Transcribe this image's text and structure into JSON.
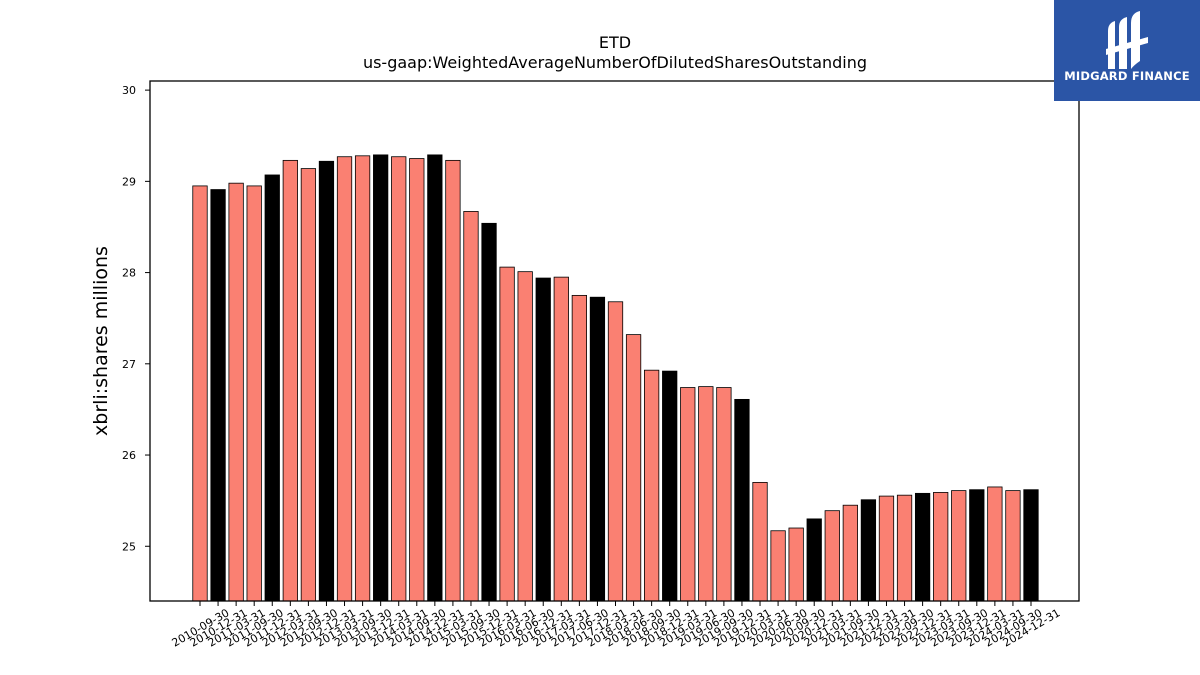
{
  "chart_data": {
    "type": "bar",
    "title": "ETD",
    "subtitle": "us-gaap:WeightedAverageNumberOfDilutedSharesOutstanding",
    "xlabel": "",
    "ylabel": "xbrli:shares millions",
    "ylim": [
      24.4,
      30.1
    ],
    "yticks": [
      25,
      26,
      27,
      28,
      29,
      30
    ],
    "grid": false,
    "colors": {
      "salmon": "#fa8072",
      "black": "#000000"
    },
    "categories": [
      "2010-09-30",
      "2010-12-31",
      "2011-03-31",
      "2011-09-30",
      "2011-12-31",
      "2012-03-31",
      "2012-09-30",
      "2012-12-31",
      "2013-03-31",
      "2013-09-30",
      "2013-12-31",
      "2014-03-31",
      "2014-09-30",
      "2014-12-31",
      "2015-03-31",
      "2015-09-30",
      "2015-12-31",
      "2016-03-31",
      "2016-06-30",
      "2016-12-31",
      "2017-03-31",
      "2017-06-30",
      "2017-12-31",
      "2018-03-31",
      "2018-06-30",
      "2018-09-30",
      "2018-12-31",
      "2019-03-31",
      "2019-06-30",
      "2019-09-30",
      "2019-12-31",
      "2020-03-31",
      "2020-06-30",
      "2020-09-30",
      "2020-12-31",
      "2021-03-31",
      "2021-09-30",
      "2021-12-31",
      "2022-03-31",
      "2022-09-30",
      "2022-12-31",
      "2023-03-31",
      "2023-09-30",
      "2023-12-31",
      "2024-03-31",
      "2024-09-30",
      "2024-12-31"
    ],
    "values": [
      28.95,
      28.91,
      28.98,
      28.95,
      29.07,
      29.23,
      29.14,
      29.22,
      29.27,
      29.28,
      29.29,
      29.27,
      29.25,
      29.29,
      29.23,
      28.67,
      28.54,
      28.06,
      28.01,
      27.94,
      27.95,
      27.75,
      27.73,
      27.68,
      27.32,
      26.93,
      26.92,
      26.74,
      26.75,
      26.74,
      26.61,
      25.7,
      25.17,
      25.2,
      25.3,
      25.39,
      25.45,
      25.51,
      25.55,
      25.56,
      25.58,
      25.59,
      25.61,
      25.62,
      25.65,
      25.61,
      25.62
    ],
    "bar_colors": [
      "salmon",
      "black",
      "salmon",
      "salmon",
      "black",
      "salmon",
      "salmon",
      "black",
      "salmon",
      "salmon",
      "black",
      "salmon",
      "salmon",
      "black",
      "salmon",
      "salmon",
      "black",
      "salmon",
      "salmon",
      "black",
      "salmon",
      "salmon",
      "black",
      "salmon",
      "salmon",
      "salmon",
      "black",
      "salmon",
      "salmon",
      "salmon",
      "black",
      "salmon",
      "salmon",
      "salmon",
      "black",
      "salmon",
      "salmon",
      "black",
      "salmon",
      "salmon",
      "black",
      "salmon",
      "salmon",
      "black",
      "salmon",
      "salmon",
      "black"
    ]
  },
  "logo": {
    "text": "MIDGARD FINANCE",
    "icon": "midgard-finance-logo-icon",
    "background": "#2b55a6"
  }
}
